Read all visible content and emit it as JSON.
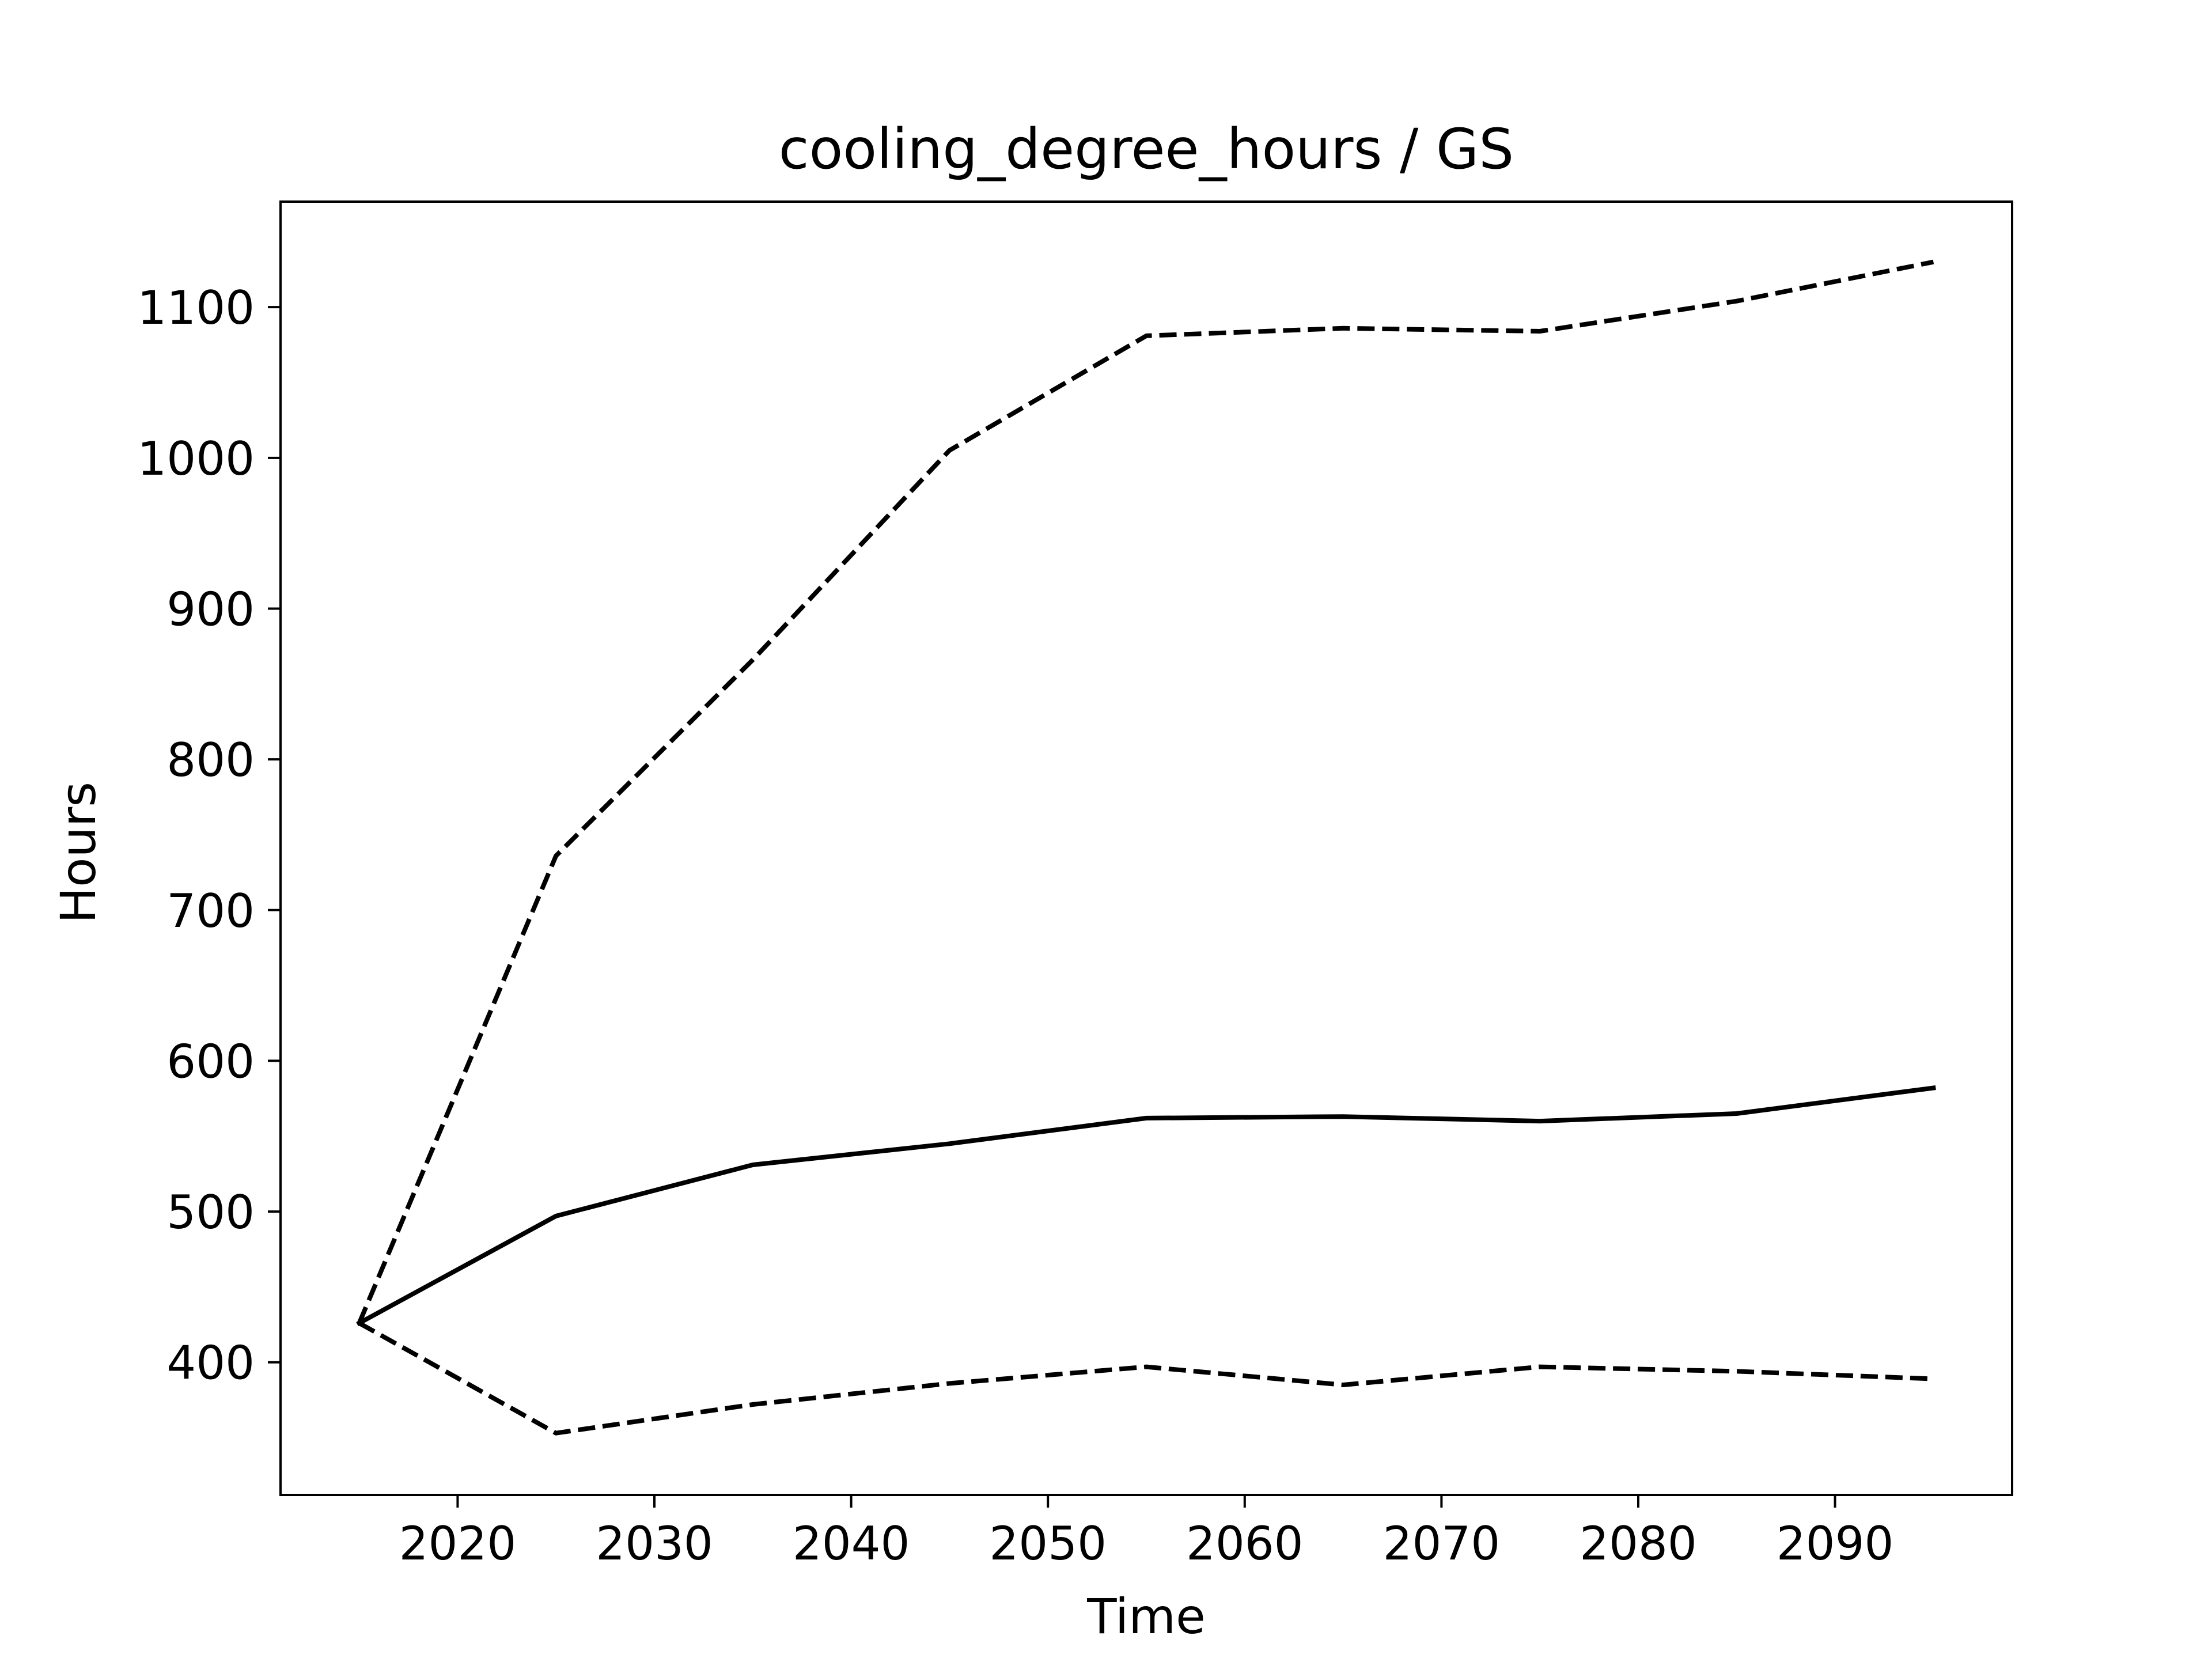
{
  "chart_data": {
    "type": "line",
    "title": "cooling_degree_hours / GS",
    "xlabel": "Time",
    "ylabel": "Hours",
    "xlim": [
      2011,
      2099
    ],
    "ylim": [
      312,
      1170
    ],
    "x_ticks": [
      2020,
      2030,
      2040,
      2050,
      2060,
      2070,
      2080,
      2090
    ],
    "y_ticks": [
      400,
      500,
      600,
      700,
      800,
      900,
      1000,
      1100
    ],
    "grid": false,
    "legend": "none",
    "x": [
      2015,
      2025,
      2035,
      2045,
      2055,
      2065,
      2075,
      2085,
      2095
    ],
    "series": [
      {
        "style": "dashed",
        "color": "#000000",
        "values": [
          426,
          736,
          866,
          1005,
          1081,
          1086,
          1084,
          1104,
          1130
        ]
      },
      {
        "style": "solid",
        "color": "#000000",
        "values": [
          426,
          497,
          531,
          545,
          562,
          563,
          560,
          565,
          582
        ]
      },
      {
        "style": "dashed",
        "color": "#000000",
        "values": [
          426,
          353,
          372,
          386,
          397,
          385,
          397,
          394,
          389
        ]
      }
    ]
  }
}
